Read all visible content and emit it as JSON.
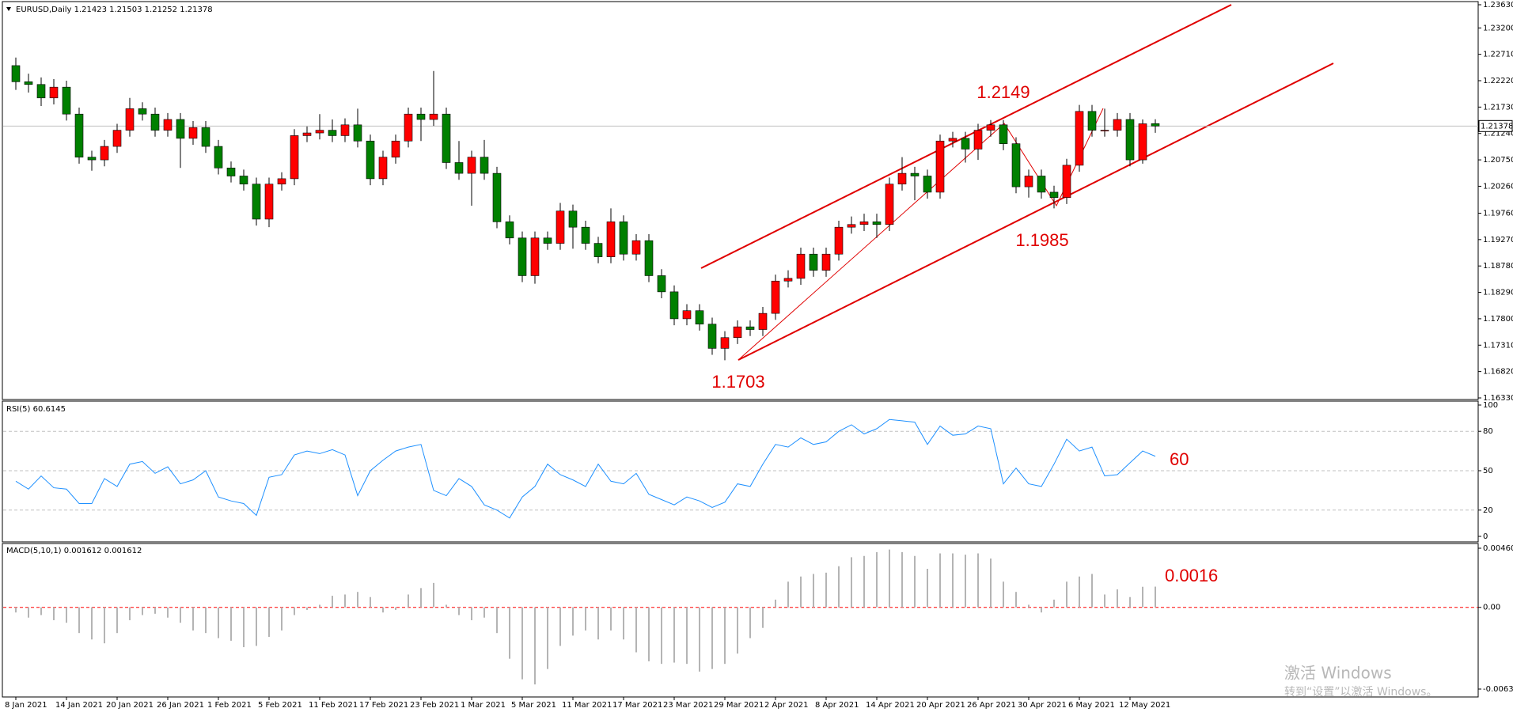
{
  "chart_data": [
    {
      "type": "candlestick",
      "title": "EURUSD,Daily  1.21423 1.21503 1.21252 1.21378",
      "categories": [
        "8 Jan 2021",
        null,
        null,
        null,
        "14 Jan 2021",
        null,
        null,
        null,
        "20 Jan 2021",
        null,
        null,
        null,
        "26 Jan 2021",
        null,
        null,
        null,
        "1 Feb 2021",
        null,
        null,
        null,
        "5 Feb 2021",
        null,
        null,
        null,
        "11 Feb 2021",
        null,
        null,
        null,
        "17 Feb 2021",
        null,
        null,
        null,
        "23 Feb 2021",
        null,
        null,
        null,
        "1 Mar 2021",
        null,
        null,
        null,
        "5 Mar 2021",
        null,
        null,
        null,
        "11 Mar 2021",
        null,
        null,
        null,
        "17 Mar 2021",
        null,
        null,
        null,
        "23 Mar 2021",
        null,
        null,
        null,
        "29 Mar 2021",
        null,
        null,
        null,
        "2 Apr 2021",
        null,
        null,
        null,
        "8 Apr 2021",
        null,
        null,
        null,
        "14 Apr 2021",
        null,
        null,
        null,
        "20 Apr 2021",
        null,
        null,
        null,
        "26 Apr 2021",
        null,
        null,
        null,
        "30 Apr 2021",
        null,
        null,
        null,
        "6 May 2021",
        null,
        null,
        null,
        "12 May 2021",
        null,
        null
      ],
      "open": [
        1.225,
        1.222,
        1.2215,
        1.219,
        1.221,
        1.216,
        1.208,
        1.2075,
        1.21,
        1.213,
        1.217,
        1.216,
        1.213,
        1.215,
        1.2115,
        1.2135,
        1.21,
        1.206,
        1.2045,
        1.203,
        1.1965,
        1.203,
        1.204,
        1.212,
        1.2125,
        1.213,
        1.212,
        1.214,
        1.211,
        1.204,
        1.208,
        1.211,
        1.216,
        1.215,
        1.216,
        1.207,
        1.205,
        1.208,
        1.205,
        1.196,
        1.193,
        1.186,
        1.193,
        1.192,
        1.198,
        1.195,
        1.192,
        1.1895,
        1.196,
        1.19,
        1.1925,
        1.186,
        1.183,
        1.178,
        1.1795,
        1.177,
        1.1725,
        1.1745,
        1.1765,
        1.176,
        1.179,
        1.185,
        1.1855,
        1.19,
        1.187,
        1.19,
        1.195,
        1.1955,
        1.196,
        1.1955,
        1.203,
        1.205,
        1.2045,
        1.2015,
        1.211,
        1.2115,
        1.2095,
        1.213,
        1.214,
        1.2105,
        1.2025,
        1.2045,
        1.2015,
        1.2005,
        1.2065,
        1.2165,
        1.213,
        1.213,
        1.215,
        1.2075,
        1.21423
      ],
      "high": [
        1.2265,
        1.2235,
        1.2228,
        1.2225,
        1.2222,
        1.2172,
        1.2092,
        1.2112,
        1.2142,
        1.219,
        1.2182,
        1.2172,
        1.2162,
        1.2162,
        1.2147,
        1.2147,
        1.2112,
        1.2072,
        1.2057,
        1.2042,
        1.2042,
        1.2052,
        1.2132,
        1.2137,
        1.216,
        1.215,
        1.2152,
        1.217,
        1.2122,
        1.2092,
        1.2122,
        1.2172,
        1.2172,
        1.224,
        1.2172,
        1.211,
        1.2092,
        1.2112,
        1.2062,
        1.1972,
        1.1942,
        1.1942,
        1.1942,
        1.1995,
        1.1992,
        1.1962,
        1.1932,
        1.1985,
        1.1972,
        1.1937,
        1.1937,
        1.1872,
        1.1842,
        1.1807,
        1.1807,
        1.1782,
        1.1757,
        1.1777,
        1.1777,
        1.1802,
        1.1862,
        1.187,
        1.1912,
        1.1912,
        1.1912,
        1.1962,
        1.197,
        1.1975,
        1.1975,
        1.2042,
        1.208,
        1.2062,
        1.2057,
        1.2122,
        1.2127,
        1.2127,
        1.2142,
        1.2149,
        1.2149,
        1.2117,
        1.2057,
        1.2057,
        1.2027,
        1.2077,
        1.2177,
        1.2177,
        1.217,
        1.2162,
        1.2162,
        1.215,
        1.21503
      ],
      "low": [
        1.2205,
        1.22,
        1.2175,
        1.2178,
        1.2148,
        1.2068,
        1.2055,
        1.2063,
        1.2088,
        1.2118,
        1.2148,
        1.2118,
        1.2118,
        1.206,
        1.2103,
        1.2088,
        1.2048,
        1.2033,
        1.2018,
        1.1953,
        1.195,
        1.2018,
        1.2028,
        1.2108,
        1.2113,
        1.2108,
        1.2108,
        1.2098,
        1.2028,
        1.2028,
        1.2068,
        1.2098,
        1.211,
        1.2138,
        1.2058,
        1.2038,
        1.199,
        1.2038,
        1.1948,
        1.1918,
        1.1848,
        1.1845,
        1.1908,
        1.1908,
        1.191,
        1.1908,
        1.1883,
        1.1883,
        1.1888,
        1.1888,
        1.1848,
        1.1818,
        1.1768,
        1.1768,
        1.1758,
        1.1713,
        1.1703,
        1.1733,
        1.1748,
        1.1748,
        1.1778,
        1.1838,
        1.1843,
        1.1858,
        1.1858,
        1.1888,
        1.1938,
        1.1943,
        1.193,
        1.1943,
        1.2018,
        1.2,
        1.2003,
        1.2003,
        1.2098,
        1.207,
        1.2075,
        1.2118,
        1.2093,
        1.2013,
        1.2005,
        1.2003,
        1.1985,
        1.1993,
        1.2053,
        1.2118,
        1.2118,
        1.2118,
        1.2063,
        1.2068,
        1.21252
      ],
      "close": [
        1.222,
        1.2215,
        1.219,
        1.221,
        1.216,
        1.208,
        1.2075,
        1.21,
        1.213,
        1.217,
        1.216,
        1.213,
        1.215,
        1.2115,
        1.2135,
        1.21,
        1.206,
        1.2045,
        1.203,
        1.1965,
        1.203,
        1.204,
        1.212,
        1.2125,
        1.213,
        1.212,
        1.214,
        1.211,
        1.204,
        1.208,
        1.211,
        1.216,
        1.215,
        1.216,
        1.207,
        1.205,
        1.208,
        1.205,
        1.196,
        1.193,
        1.186,
        1.193,
        1.192,
        1.198,
        1.195,
        1.192,
        1.1895,
        1.196,
        1.19,
        1.1925,
        1.186,
        1.183,
        1.178,
        1.1795,
        1.177,
        1.1725,
        1.1745,
        1.1765,
        1.176,
        1.179,
        1.185,
        1.1855,
        1.19,
        1.187,
        1.19,
        1.195,
        1.1955,
        1.196,
        1.1955,
        1.203,
        1.205,
        1.2045,
        1.2015,
        1.211,
        1.2115,
        1.2095,
        1.213,
        1.214,
        1.2105,
        1.2025,
        1.2045,
        1.2015,
        1.2005,
        1.2065,
        1.2165,
        1.213,
        1.213,
        1.215,
        1.2075,
        1.2142,
        1.21378
      ],
      "up_color": "#ff0000",
      "down_color": "#008000",
      "ylim": [
        1.1633,
        1.2363
      ],
      "yticks": [
        {
          "value": 1.2363,
          "label": "1.23630"
        },
        {
          "value": 1.232,
          "label": "1.23200"
        },
        {
          "value": 1.2271,
          "label": "1.22710"
        },
        {
          "value": 1.2222,
          "label": "1.22220"
        },
        {
          "value": 1.2173,
          "label": "1.21730"
        },
        {
          "value": 1.2124,
          "label": "1.21240"
        },
        {
          "value": 1.2075,
          "label": "1.20750"
        },
        {
          "value": 1.2026,
          "label": "1.20260"
        },
        {
          "value": 1.1976,
          "label": "1.19760"
        },
        {
          "value": 1.1927,
          "label": "1.19270"
        },
        {
          "value": 1.1878,
          "label": "1.18780"
        },
        {
          "value": 1.1829,
          "label": "1.18290"
        },
        {
          "value": 1.178,
          "label": "1.17800"
        },
        {
          "value": 1.1731,
          "label": "1.17310"
        },
        {
          "value": 1.1682,
          "label": "1.16820"
        },
        {
          "value": 1.1633,
          "label": "1.16330"
        }
      ],
      "annotations": [
        "1.2149",
        "1.1985",
        "1.1703"
      ]
    },
    {
      "type": "line",
      "title": "RSI(5) 60.6145",
      "values": [
        42,
        36,
        46,
        37,
        36,
        25,
        25,
        44,
        38,
        55,
        57,
        48,
        53,
        40,
        43,
        50,
        30,
        27,
        25,
        16,
        45,
        47,
        62,
        65,
        63,
        66,
        62,
        31,
        50,
        58,
        65,
        68,
        70,
        35,
        31,
        44,
        38,
        24,
        20,
        14,
        30,
        38,
        55,
        47,
        43,
        38,
        55,
        42,
        40,
        48,
        32,
        28,
        24,
        30,
        27,
        22,
        26,
        40,
        38,
        55,
        70,
        68,
        75,
        70,
        72,
        80,
        85,
        78,
        82,
        89,
        88,
        87,
        70,
        84,
        77,
        78,
        84,
        82,
        40,
        52,
        40,
        38,
        55,
        74,
        65,
        68,
        46,
        47,
        56,
        65,
        61
      ],
      "color": "#1e90ff",
      "ylim": [
        0,
        100
      ],
      "yticks": [
        0,
        20,
        50,
        80,
        100
      ],
      "grid": true,
      "grid_color": "#c0c0c0",
      "annotations": [
        "60"
      ]
    },
    {
      "type": "bar",
      "title": "MACD(5,10,1) 0.001612 0.001612",
      "values": [
        -0.0004,
        -0.0008,
        -0.0006,
        -0.001,
        -0.0012,
        -0.002,
        -0.0025,
        -0.0028,
        -0.002,
        -0.001,
        -0.0006,
        -0.0005,
        -0.0008,
        -0.0012,
        -0.0018,
        -0.002,
        -0.0024,
        -0.0026,
        -0.0031,
        -0.003,
        -0.0023,
        -0.0018,
        -0.0006,
        -0.0002,
        0.0002,
        0.0009,
        0.001,
        0.0012,
        0.0008,
        -0.0004,
        -0.0002,
        0.001,
        0.0015,
        0.0019,
        0.0002,
        -0.0006,
        -0.001,
        -0.0008,
        -0.002,
        -0.004,
        -0.0056,
        -0.006,
        -0.0048,
        -0.003,
        -0.0022,
        -0.0018,
        -0.0025,
        -0.0018,
        -0.0025,
        -0.0035,
        -0.0042,
        -0.0044,
        -0.0043,
        -0.0044,
        -0.005,
        -0.0048,
        -0.0044,
        -0.0036,
        -0.0024,
        -0.0016,
        0.0006,
        0.002,
        0.0024,
        0.0026,
        0.0027,
        0.0032,
        0.0039,
        0.004,
        0.0043,
        0.0045,
        0.0043,
        0.004,
        0.003,
        0.0042,
        0.0042,
        0.0041,
        0.0042,
        0.0038,
        0.002,
        0.0012,
        0.0002,
        -0.0004,
        0.0006,
        0.002,
        0.0024,
        0.0026,
        0.001,
        0.0014,
        0.0008,
        0.0016,
        0.001612
      ],
      "color": "#b4b4b4",
      "ylim": [
        -0.00636,
        0.0046
      ],
      "yticks": [
        -0.00636,
        {
          "value": 0,
          "label": "0.00"
        },
        {
          "value": 0.0046,
          "label": "0.00460"
        }
      ],
      "grid": true,
      "grid_color": "#ff0000",
      "annotations": [
        "0.0016"
      ]
    }
  ],
  "watermark": {
    "line1": "激活 Windows",
    "line2": "转到“设置”以激活 Windows。"
  }
}
